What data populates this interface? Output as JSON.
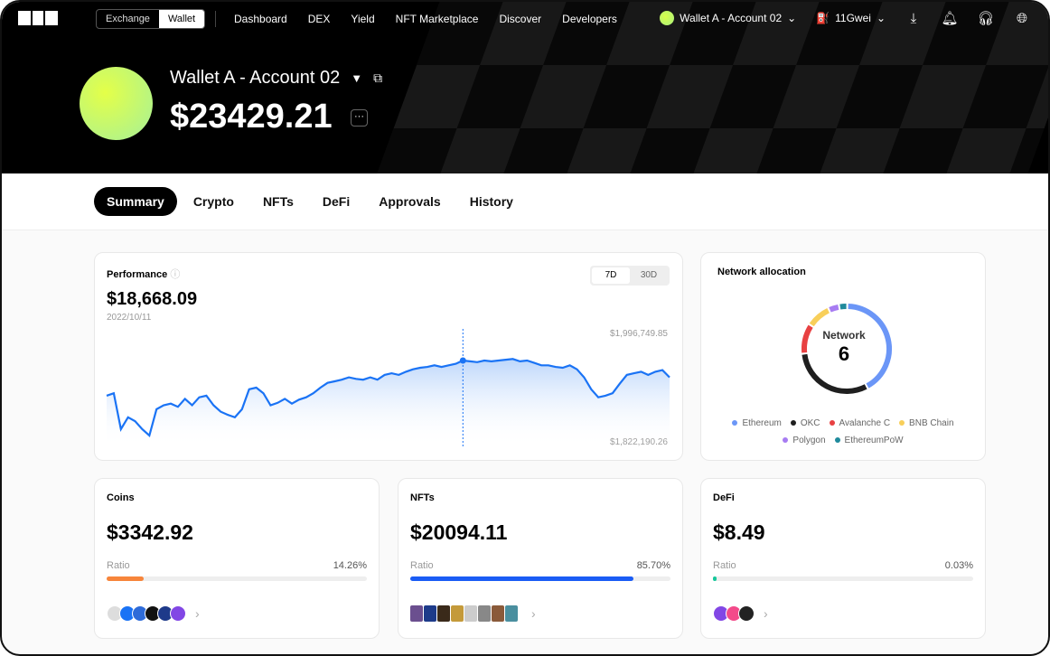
{
  "nav": {
    "mode_options": [
      "Exchange",
      "Wallet"
    ],
    "selected_mode": "Wallet",
    "links": [
      "Dashboard",
      "DEX",
      "Yield",
      "NFT Marketplace",
      "Discover",
      "Developers"
    ],
    "account": "Wallet A - Account 02",
    "gas": "11Gwei"
  },
  "wallet": {
    "name": "Wallet A - Account 02",
    "balance": "$23429.21"
  },
  "tabs": [
    "Summary",
    "Crypto",
    "NFTs",
    "DeFi",
    "Approvals",
    "History"
  ],
  "active_tab": "Summary",
  "performance": {
    "title": "Performance",
    "value": "$18,668.09",
    "date": "2022/10/11",
    "ranges": [
      "7D",
      "30D"
    ],
    "selected_range": "7D",
    "max_label": "$1,996,749.85",
    "min_label": "$1,822,190.26"
  },
  "chart_data": {
    "type": "area",
    "ylim": [
      1822190.26,
      1996749.85
    ],
    "hover_index": 50,
    "values": [
      1908000,
      1912400,
      1846900,
      1868700,
      1861500,
      1846900,
      1835300,
      1883300,
      1890600,
      1893500,
      1887700,
      1902200,
      1890600,
      1905100,
      1908000,
      1890600,
      1878900,
      1873100,
      1868700,
      1883300,
      1919700,
      1922600,
      1912400,
      1890600,
      1894900,
      1902200,
      1893500,
      1900700,
      1905100,
      1912400,
      1922600,
      1931300,
      1934200,
      1937100,
      1941500,
      1938600,
      1937100,
      1941500,
      1937100,
      1945800,
      1948800,
      1945800,
      1951700,
      1956000,
      1958900,
      1960400,
      1963300,
      1960400,
      1963300,
      1966200,
      1972000,
      1970600,
      1969100,
      1972000,
      1970600,
      1972000,
      1973500,
      1974900,
      1970600,
      1972000,
      1967700,
      1963300,
      1963300,
      1960400,
      1958900,
      1963300,
      1956000,
      1941500,
      1919700,
      1905100,
      1908000,
      1912400,
      1929800,
      1945800,
      1948800,
      1951700,
      1945800,
      1951700,
      1954600,
      1941500
    ],
    "color": "#1a73f5"
  },
  "network": {
    "title": "Network allocation",
    "center_label": "Network",
    "count": "6",
    "slices": [
      {
        "name": "Ethereum",
        "pct": 42,
        "color": "#6b96f7"
      },
      {
        "name": "OKC",
        "pct": 31,
        "color": "#1f1f1f"
      },
      {
        "name": "Avalanche C",
        "pct": 11,
        "color": "#e84142"
      },
      {
        "name": "BNB Chain",
        "pct": 9,
        "color": "#f8cf5a"
      },
      {
        "name": "Polygon",
        "pct": 4,
        "color": "#a77cf2"
      },
      {
        "name": "EthereumPoW",
        "pct": 3,
        "color": "#1f8a9c"
      }
    ]
  },
  "cards": [
    {
      "title": "Coins",
      "value": "$3342.92",
      "ratio_label": "Ratio",
      "ratio": "14.26%",
      "ratio_pct": 14.26,
      "color": "#f7853b"
    },
    {
      "title": "NFTs",
      "value": "$20094.11",
      "ratio_label": "Ratio",
      "ratio": "85.70%",
      "ratio_pct": 85.7,
      "color": "#1a5cf5"
    },
    {
      "title": "DeFi",
      "value": "$8.49",
      "ratio_label": "Ratio",
      "ratio": "0.03%",
      "ratio_pct": 0.03,
      "color": "#17c79b"
    }
  ]
}
